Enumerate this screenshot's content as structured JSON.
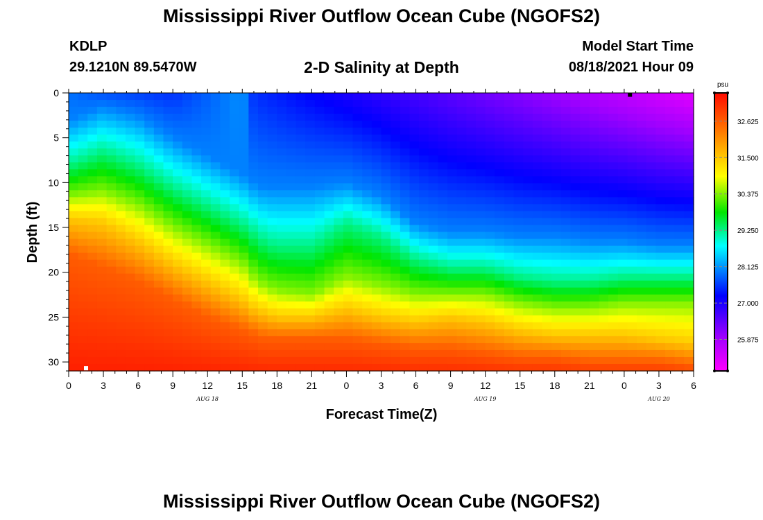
{
  "header": {
    "title": "Mississippi River Outflow Ocean Cube (NGOFS2)",
    "station": "KDLP",
    "coords": "29.1210N  89.5470W",
    "subtitle": "2-D Salinity at Depth",
    "model_start_label": "Model Start Time",
    "model_start_value": "08/18/2021 Hour 09"
  },
  "footer": {
    "title": "Mississippi River Outflow Ocean Cube (NGOFS2)"
  },
  "chart_data": {
    "type": "heatmap",
    "title": "2-D Salinity at Depth",
    "xlabel": "Forecast Time(Z)",
    "ylabel": "Depth (ft)",
    "x_hours_range": [
      0,
      54
    ],
    "y_range": [
      0,
      31
    ],
    "y_inverted": true,
    "x_tick_labels": [
      "0",
      "3",
      "6",
      "9",
      "12",
      "15",
      "18",
      "21",
      "0",
      "3",
      "6",
      "9",
      "12",
      "15",
      "18",
      "21",
      "0",
      "3",
      "6"
    ],
    "y_tick_labels": [
      "0",
      "5",
      "10",
      "15",
      "20",
      "25",
      "30"
    ],
    "date_labels": [
      {
        "text": "AUG 18",
        "hour": 12
      },
      {
        "text": "AUG 19",
        "hour": 36
      },
      {
        "text": "AUG 20",
        "hour": 51
      }
    ],
    "colorbar": {
      "unit": "psu",
      "min": 24.9,
      "max": 33.5,
      "tick_labels": [
        "32.625",
        "31.500",
        "30.375",
        "29.250",
        "28.125",
        "27.000",
        "25.875"
      ],
      "tick_values": [
        32.625,
        31.5,
        30.375,
        29.25,
        28.125,
        27.0,
        25.875
      ]
    },
    "isolines": {
      "time_hours": [
        0,
        3,
        6,
        9,
        12,
        15,
        16,
        17,
        18,
        21,
        24,
        27,
        30,
        33,
        36,
        39,
        42,
        45,
        48,
        51,
        54
      ],
      "depths": [
        {
          "salinity": 28.0,
          "values": [
            3.0,
            1.5,
            2.5,
            5.0,
            7.0,
            9.0,
            10.0,
            10.5,
            10.5,
            10.5,
            10.0,
            11.5,
            14.5,
            15.5,
            15.5,
            16.0,
            16.0,
            16.5,
            16.5,
            17.0,
            17.0
          ]
        },
        {
          "salinity": 29.25,
          "values": [
            8.0,
            6.5,
            8.0,
            10.5,
            12.5,
            14.5,
            15.5,
            16.5,
            17.0,
            17.0,
            14.5,
            16.0,
            18.5,
            19.5,
            19.5,
            20.5,
            21.0,
            21.0,
            20.5,
            20.5,
            20.5
          ]
        },
        {
          "salinity": 30.4,
          "values": [
            11.5,
            11.0,
            12.5,
            15.0,
            17.0,
            19.0,
            20.5,
            21.5,
            22.0,
            22.5,
            20.5,
            21.5,
            22.5,
            22.5,
            22.5,
            23.5,
            24.0,
            24.0,
            23.5,
            23.5,
            23.5
          ]
        },
        {
          "salinity": 31.5,
          "values": [
            14.0,
            14.5,
            16.5,
            19.0,
            21.0,
            23.0,
            24.0,
            24.5,
            25.0,
            25.0,
            24.0,
            25.0,
            25.5,
            25.0,
            25.5,
            26.5,
            27.0,
            27.0,
            27.0,
            27.5,
            28.0
          ]
        },
        {
          "salinity": 32.625,
          "values": [
            18.0,
            19.5,
            21.0,
            23.0,
            25.0,
            26.5,
            27.0,
            27.5,
            27.5,
            27.5,
            27.5,
            28.0,
            28.5,
            28.5,
            29.0,
            29.5,
            29.5,
            30.0,
            30.0,
            30.0,
            30.5
          ]
        }
      ],
      "surface": [
        {
          "time_hours": [
            0,
            3,
            6,
            9,
            12,
            15,
            16,
            54
          ],
          "salinity": [
            27.9,
            27.7,
            27.6,
            27.5,
            27.8,
            28.1,
            27.5,
            25.2
          ]
        }
      ]
    },
    "markers": [
      {
        "hour": 48.5,
        "depth": 0.2,
        "color": "#000000"
      },
      {
        "hour": 1.5,
        "depth": 30.7,
        "color": "#ffffff"
      }
    ]
  }
}
